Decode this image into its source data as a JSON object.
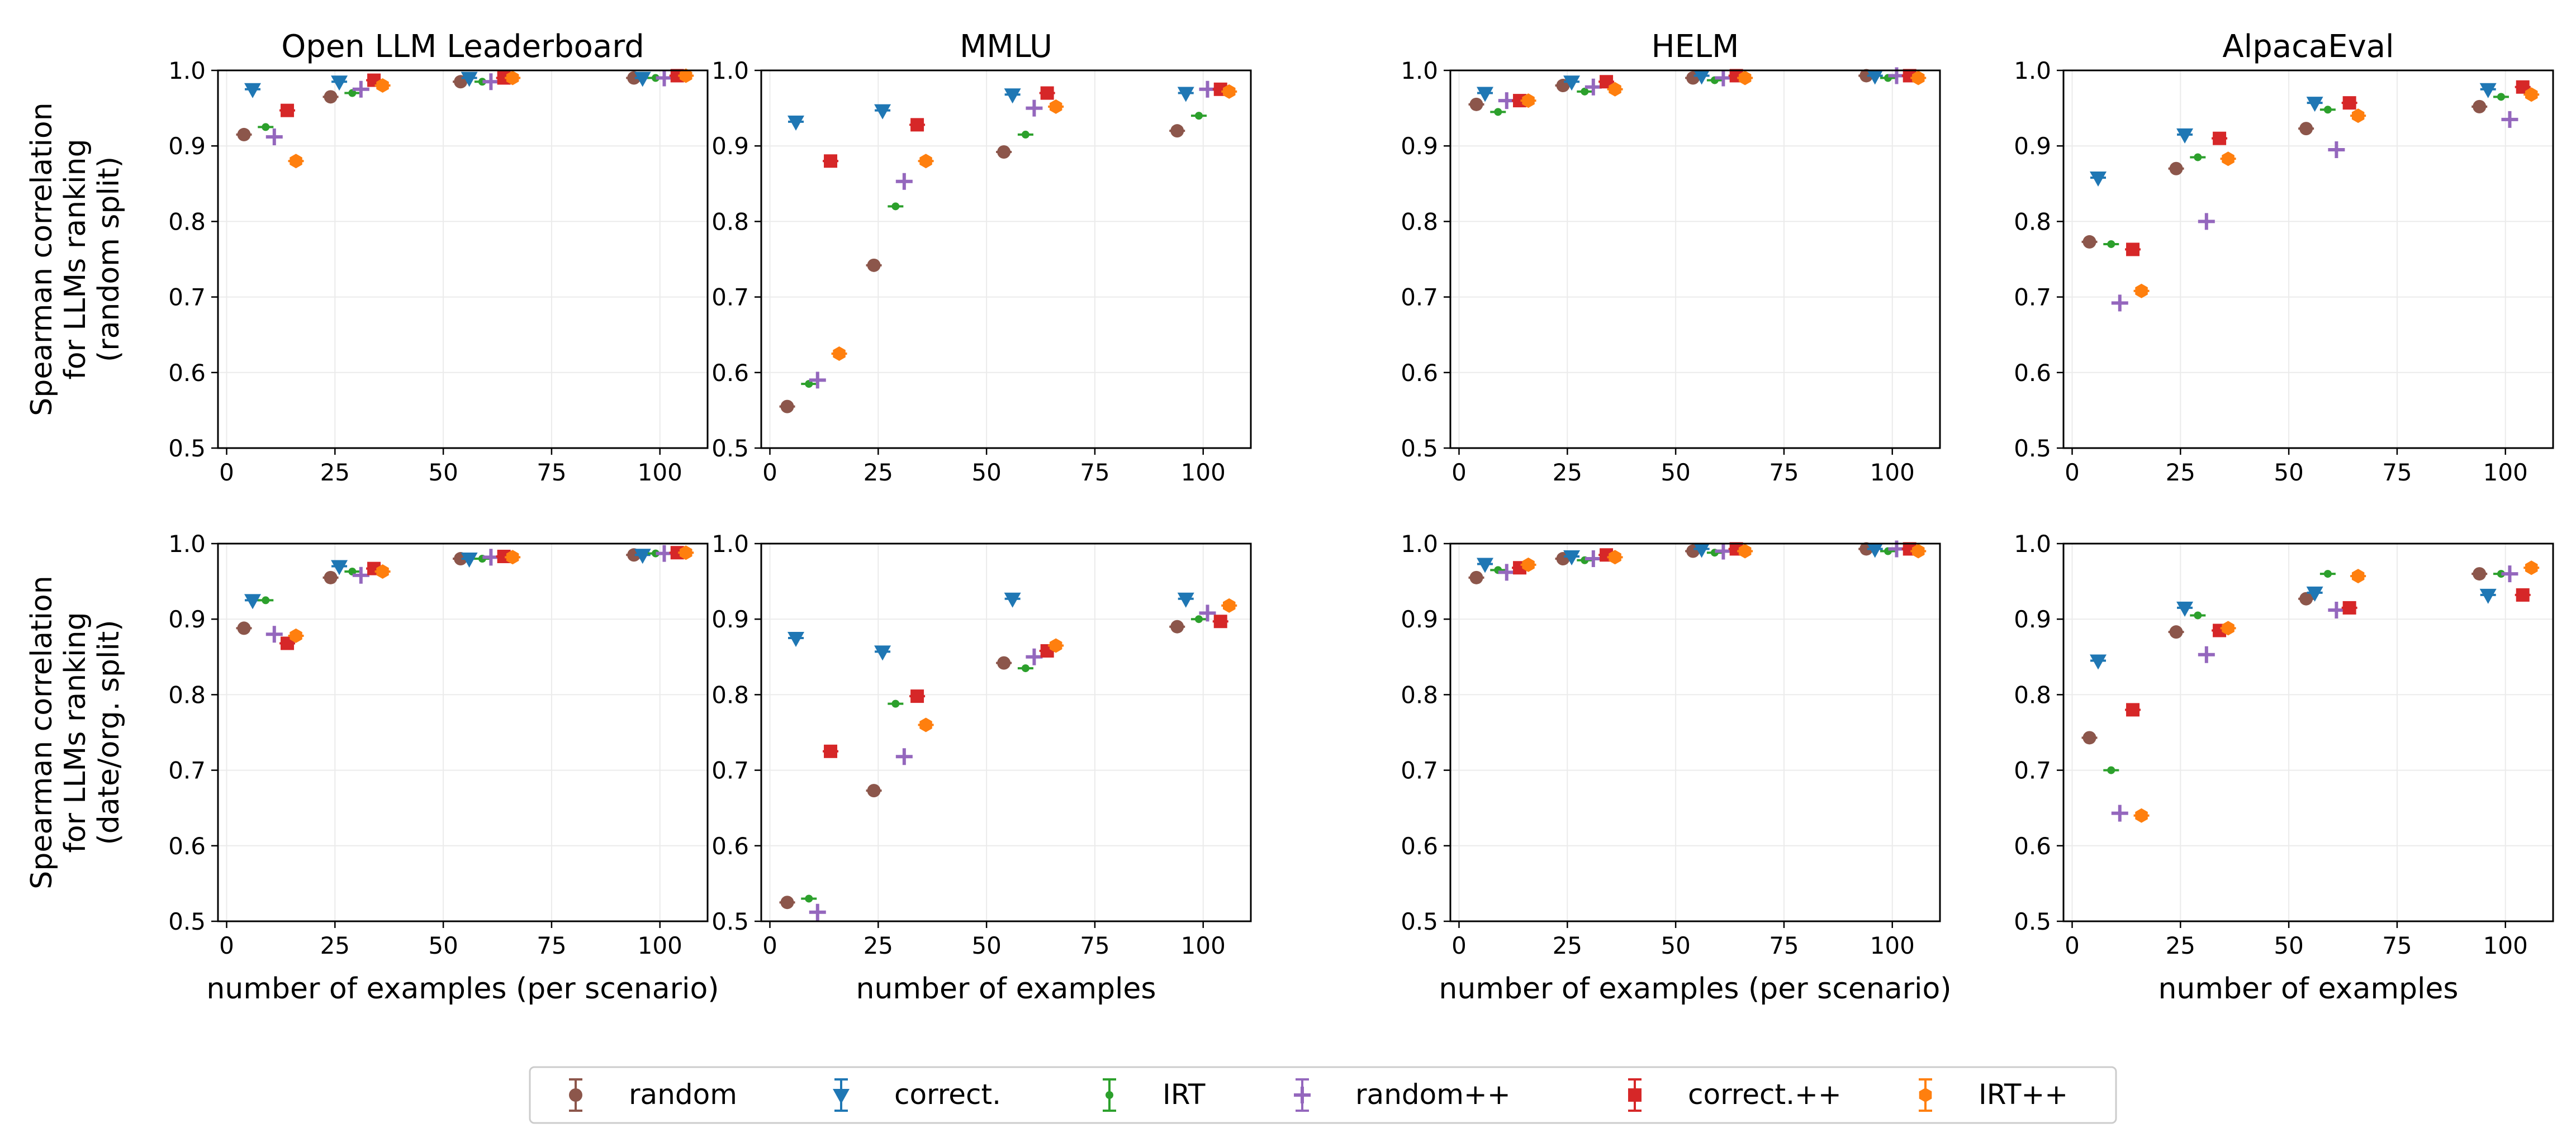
{
  "chart_data": {
    "type": "scatter",
    "xlim": [
      -2,
      111
    ],
    "ylim": [
      0.5,
      1.0
    ],
    "xticks": [
      0,
      25,
      50,
      75,
      100
    ],
    "yticks": [
      0.5,
      0.6,
      0.7,
      0.8,
      0.9,
      1.0
    ],
    "grid": true,
    "legend_placement": "bottom-center",
    "row_ylabels": [
      [
        "Spearman correlation",
        "for LLMs ranking",
        "(random split)"
      ],
      [
        "Spearman correlation",
        "for LLMs ranking",
        "(date/org. split)"
      ]
    ],
    "col_titles": [
      "Open LLM Leaderboard",
      "MMLU",
      "HELM",
      "AlpacaEval"
    ],
    "col_xlabels": [
      "number of examples (per scenario)",
      "number of examples",
      "number of examples (per scenario)",
      "number of examples"
    ],
    "series": [
      {
        "name": "random",
        "color": "#8c564b",
        "marker": "circle",
        "x": [
          4,
          24,
          54,
          94
        ]
      },
      {
        "name": "correct.",
        "color": "#1f77b4",
        "marker": "triangle-down",
        "x": [
          6,
          26,
          56,
          96
        ]
      },
      {
        "name": "IRT",
        "color": "#2ca02c",
        "marker": "point",
        "x": [
          9,
          29,
          59,
          99
        ]
      },
      {
        "name": "random++",
        "color": "#9467bd",
        "marker": "plus",
        "x": [
          11,
          31,
          61,
          101
        ]
      },
      {
        "name": "correct.++",
        "color": "#d62728",
        "marker": "square",
        "x": [
          14,
          34,
          64,
          104
        ]
      },
      {
        "name": "IRT++",
        "color": "#ff7f0e",
        "marker": "hexagon",
        "x": [
          16,
          36,
          66,
          106
        ]
      }
    ],
    "panels": [
      {
        "row": 0,
        "col": 0,
        "y": [
          [
            0.915,
            0.965,
            0.985,
            0.99
          ],
          [
            0.975,
            0.985,
            0.99,
            0.99
          ],
          [
            0.925,
            0.97,
            0.985,
            0.99
          ],
          [
            0.912,
            0.975,
            0.985,
            0.99
          ],
          [
            0.947,
            0.987,
            0.99,
            0.993
          ],
          [
            0.88,
            0.98,
            0.99,
            0.993
          ]
        ]
      },
      {
        "row": 0,
        "col": 1,
        "y": [
          [
            0.555,
            0.742,
            0.892,
            0.92
          ],
          [
            0.932,
            0.947,
            0.968,
            0.97
          ],
          [
            0.585,
            0.82,
            0.915,
            0.94
          ],
          [
            0.59,
            0.853,
            0.95,
            0.975
          ],
          [
            0.88,
            0.928,
            0.97,
            0.975
          ],
          [
            0.625,
            0.88,
            0.952,
            0.972
          ]
        ]
      },
      {
        "row": 0,
        "col": 2,
        "y": [
          [
            0.955,
            0.98,
            0.99,
            0.993
          ],
          [
            0.97,
            0.985,
            0.993,
            0.993
          ],
          [
            0.945,
            0.972,
            0.987,
            0.99
          ],
          [
            0.96,
            0.978,
            0.99,
            0.993
          ],
          [
            0.96,
            0.985,
            0.993,
            0.993
          ],
          [
            0.96,
            0.975,
            0.99,
            0.99
          ]
        ]
      },
      {
        "row": 0,
        "col": 3,
        "y": [
          [
            0.773,
            0.87,
            0.923,
            0.952
          ],
          [
            0.858,
            0.915,
            0.957,
            0.975
          ],
          [
            0.77,
            0.885,
            0.948,
            0.965
          ],
          [
            0.692,
            0.8,
            0.895,
            0.935
          ],
          [
            0.763,
            0.91,
            0.957,
            0.978
          ],
          [
            0.708,
            0.883,
            0.94,
            0.968
          ]
        ]
      },
      {
        "row": 1,
        "col": 0,
        "y": [
          [
            0.888,
            0.955,
            0.98,
            0.985
          ],
          [
            0.925,
            0.97,
            0.98,
            0.985
          ],
          [
            0.925,
            0.963,
            0.98,
            0.987
          ],
          [
            0.88,
            0.958,
            0.982,
            0.987
          ],
          [
            0.868,
            0.967,
            0.983,
            0.988
          ],
          [
            0.878,
            0.963,
            0.982,
            0.988
          ]
        ]
      },
      {
        "row": 1,
        "col": 1,
        "y": [
          [
            0.525,
            0.673,
            0.842,
            0.89
          ],
          [
            0.875,
            0.857,
            0.927,
            0.927
          ],
          [
            0.53,
            0.788,
            0.835,
            0.9
          ],
          [
            0.512,
            0.718,
            0.85,
            0.908
          ],
          [
            0.725,
            0.798,
            0.858,
            0.897
          ],
          [
            null,
            0.76,
            0.865,
            0.918
          ]
        ]
      },
      {
        "row": 1,
        "col": 2,
        "y": [
          [
            0.955,
            0.98,
            0.99,
            0.993
          ],
          [
            0.973,
            0.983,
            0.993,
            0.993
          ],
          [
            0.965,
            0.978,
            0.988,
            0.99
          ],
          [
            0.962,
            0.98,
            0.99,
            0.993
          ],
          [
            0.968,
            0.985,
            0.993,
            0.993
          ],
          [
            0.972,
            0.982,
            0.99,
            0.99
          ]
        ]
      },
      {
        "row": 1,
        "col": 3,
        "y": [
          [
            0.743,
            0.883,
            0.927,
            0.96
          ],
          [
            0.845,
            0.915,
            0.935,
            0.932
          ],
          [
            0.7,
            0.905,
            0.96,
            0.96
          ],
          [
            0.643,
            0.853,
            0.912,
            0.96
          ],
          [
            0.78,
            0.885,
            0.915,
            0.932
          ],
          [
            0.64,
            0.888,
            0.957,
            0.968
          ]
        ]
      }
    ]
  }
}
